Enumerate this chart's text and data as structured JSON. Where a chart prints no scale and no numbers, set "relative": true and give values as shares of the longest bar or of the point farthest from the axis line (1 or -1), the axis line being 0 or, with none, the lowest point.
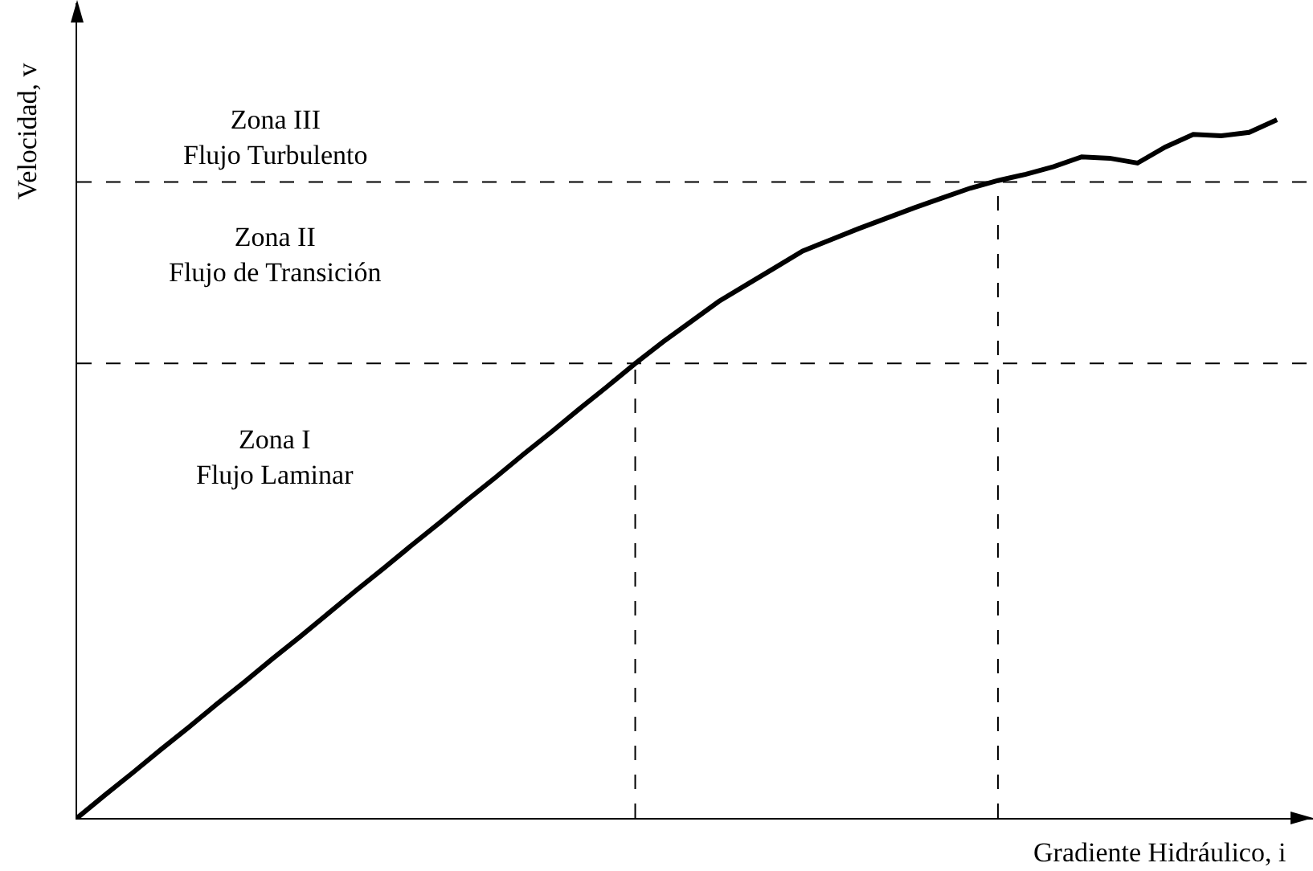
{
  "chart_data": {
    "type": "line",
    "relative": true,
    "xlabel": "Gradiente Hidráulico, i",
    "ylabel": "Velocidad, v",
    "categories": [
      null,
      null,
      null,
      null,
      null,
      null,
      null,
      null,
      null,
      null,
      null,
      null,
      null,
      null,
      null,
      null,
      null,
      null,
      null,
      null,
      null,
      null,
      null,
      null,
      null,
      null,
      null,
      null,
      null,
      null,
      null,
      null,
      null,
      null,
      null,
      null,
      null,
      null,
      null,
      null,
      null,
      null,
      null,
      null
    ],
    "series": [
      {
        "color": "#000000",
        "values": [
          0,
          0.033,
          0.065,
          0.098,
          0.13,
          0.163,
          0.195,
          0.228,
          0.26,
          0.293,
          0.326,
          0.358,
          0.391,
          0.423,
          0.456,
          0.488,
          0.521,
          0.553,
          0.586,
          0.618,
          0.651,
          0.682,
          0.711,
          0.74,
          0.764,
          0.788,
          0.812,
          0.828,
          0.844,
          0.859,
          0.874,
          0.888,
          0.902,
          0.913,
          0.922,
          0.933,
          0.947,
          0.945,
          0.938,
          0.961,
          0.979,
          0.977,
          0.982,
          1
        ]
      }
    ],
    "ref_lines": [
      {
        "axis": "y",
        "value": 0.651,
        "line_style": "dashed",
        "color": "#000000"
      },
      {
        "axis": "y",
        "value": 0.911,
        "line_style": "dashed",
        "color": "#000000"
      }
    ],
    "annotations": [
      "Zona III\nFlujo Turbulento",
      "Zona II\nFlujo de Transición",
      "Zona I\nFlujo Laminar"
    ],
    "marker": "none",
    "line_style": "solid"
  }
}
